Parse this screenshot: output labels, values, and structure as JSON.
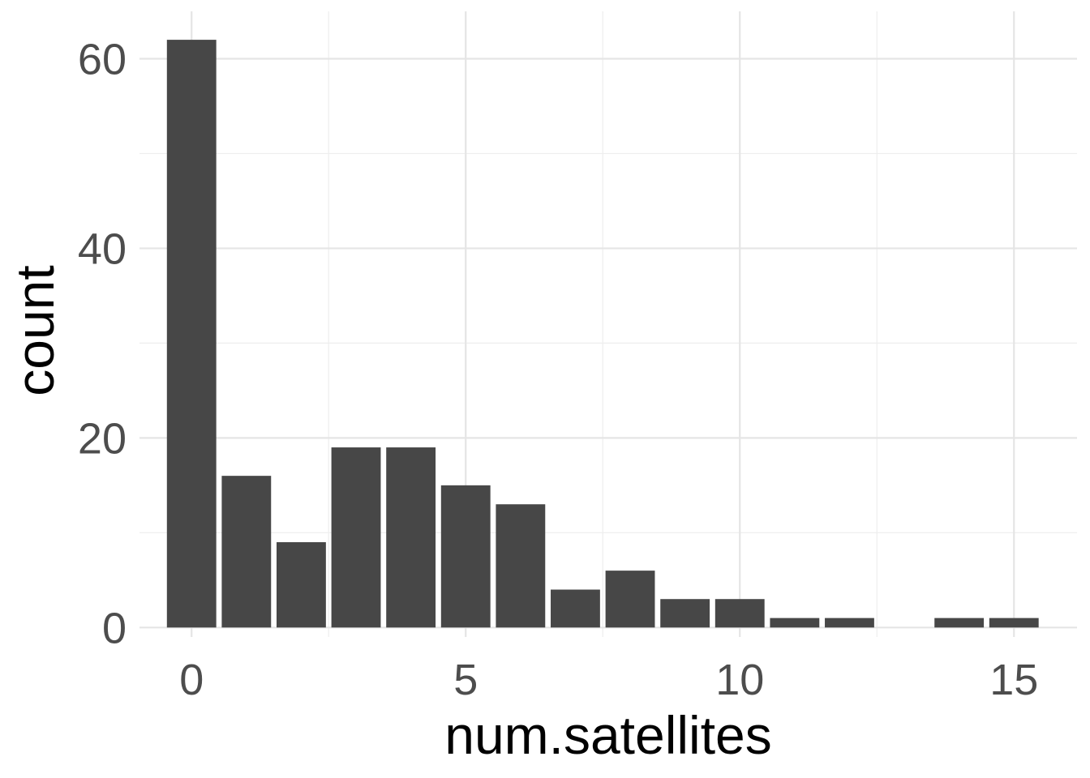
{
  "chart_data": {
    "type": "bar",
    "x": [
      0,
      1,
      2,
      3,
      4,
      5,
      6,
      7,
      8,
      9,
      10,
      11,
      12,
      13,
      14,
      15
    ],
    "values": [
      62,
      16,
      9,
      19,
      19,
      15,
      13,
      4,
      6,
      3,
      3,
      1,
      1,
      0,
      1,
      1
    ],
    "xlabel": "num.satellites",
    "ylabel": "count",
    "xlim": [
      -0.95,
      16.15
    ],
    "ylim": [
      -1,
      65
    ],
    "x_ticks": [
      0,
      5,
      10,
      15
    ],
    "x_tick_labels": [
      "0",
      "5",
      "10",
      "15"
    ],
    "y_ticks": [
      0,
      20,
      40,
      60
    ],
    "y_tick_labels": [
      "0",
      "20",
      "40",
      "60"
    ],
    "grid": true,
    "bar_color": "#474747",
    "grid_color": "#e5e5e5"
  }
}
